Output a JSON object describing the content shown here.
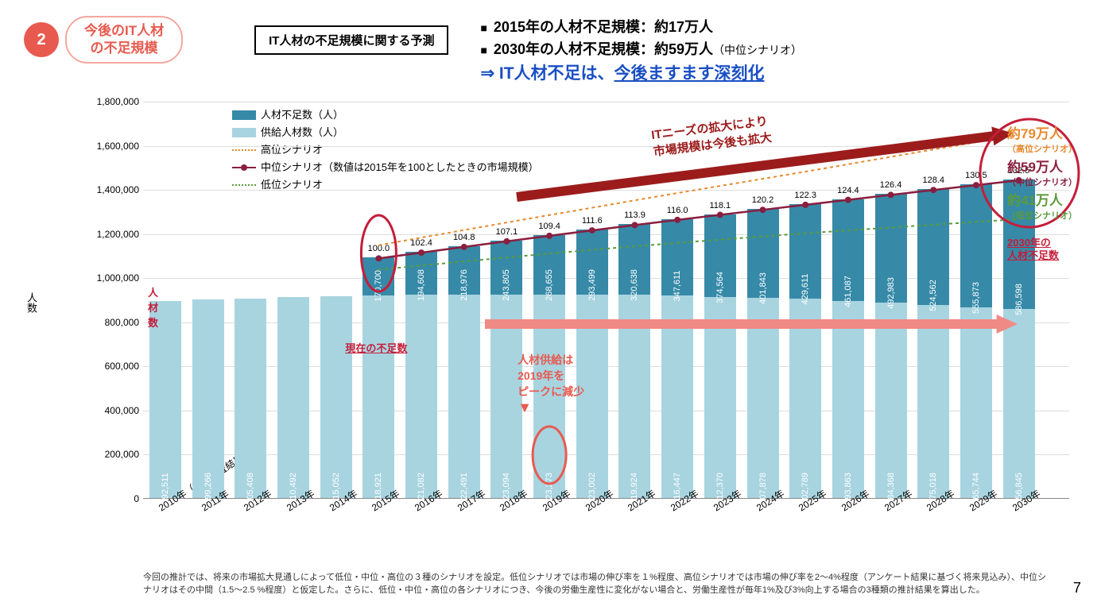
{
  "header": {
    "badge_num": "2",
    "badge_title_l1": "今後のIT人材",
    "badge_title_l2": "の不足規模",
    "forecast_box": "IT人材の不足規模に関する予測",
    "summary": {
      "r1_a": "2015年の人材不足規模：",
      "r1_b": "約17万人",
      "r2_a": "2030年の人材不足規模：",
      "r2_b": "約59万人",
      "r2_c": "（中位シナリオ）",
      "r3_a": "⇒ IT人材不足は、",
      "r3_b": "今後ますます深刻化"
    }
  },
  "chart": {
    "yaxis_label": "人数",
    "ylim": [
      0,
      1800000
    ],
    "ytick_step": 200000,
    "yticks": [
      "0",
      "200,000",
      "400,000",
      "600,000",
      "800,000",
      "1,000,000",
      "1,200,000",
      "1,400,000",
      "1,600,000",
      "1,800,000"
    ],
    "categories": [
      "2010年（国勢調査結果）",
      "2011年",
      "2012年",
      "2013年",
      "2014年",
      "2015年",
      "2016年",
      "2017年",
      "2018年",
      "2019年",
      "2020年",
      "2021年",
      "2022年",
      "2023年",
      "2024年",
      "2025年",
      "2026年",
      "2027年",
      "2028年",
      "2029年",
      "2030年"
    ],
    "supply": [
      892511,
      899266,
      905408,
      910492,
      915052,
      918921,
      921082,
      922491,
      923094,
      923273,
      923002,
      919924,
      916447,
      912370,
      907878,
      902789,
      893863,
      884368,
      875018,
      865744,
      856845
    ],
    "shortage": [
      0,
      0,
      0,
      0,
      0,
      170700,
      194608,
      218976,
      243805,
      268655,
      293499,
      320638,
      347611,
      374564,
      401843,
      429611,
      461087,
      492983,
      524562,
      555873,
      586598
    ],
    "line_vals": [
      "",
      "",
      "",
      "",
      "",
      "100.0",
      "102.4",
      "104.8",
      "107.1",
      "109.4",
      "111.6",
      "113.9",
      "116.0",
      "118.1",
      "120.2",
      "122.3",
      "124.4",
      "126.4",
      "128.4",
      "130.5",
      "132.5"
    ],
    "colors": {
      "supply": "#a8d4e0",
      "shortage": "#368aa8",
      "high": "#e8892c",
      "mid": "#8a1f3f",
      "low": "#5a9a3c",
      "arrow_dark": "#9c1c1c",
      "arrow_pink": "#f08a84",
      "circle": "#c41e3a"
    },
    "legend": {
      "shortage": "人材不足数（人）",
      "supply": "供給人材数（人）",
      "high": "高位シナリオ",
      "mid": "中位シナリオ（数値は2015年を100としたときの市場規模）",
      "low": "低位シナリオ"
    },
    "annotations": {
      "jz": "人\n材\n数",
      "current": "現在の不足数",
      "peak_l1": "人材供給は",
      "peak_l2": "2019年を",
      "peak_l3": "ピークに減少",
      "growth_l1": "ITニーズの拡大により",
      "growth_l2": "市場規模は今後も拡大",
      "sc_high": "約79万人",
      "sc_high_sub": "（高位シナリオ）",
      "sc_mid": "約59万人",
      "sc_mid_sub": "（中位シナリオ）",
      "sc_low": "約41万人",
      "sc_low_sub": "（低位シナリオ）",
      "sc_title_l1": "2030年の",
      "sc_title_l2": "人材不足数"
    }
  },
  "footnote": "今回の推計では、将来の市場拡大見通しによって低位・中位・高位の３種のシナリオを設定。低位シナリオでは市場の伸び率を１%程度、高位シナリオでは市場の伸び率を2～4%程度（アンケート結果に基づく将来見込み）、中位シナリオはその中間（1.5～2.5 %程度）と仮定した。さらに、低位・中位・高位の各シナリオにつき、今後の労働生産性に変化がない場合と、労働生産性が毎年1%及び3%向上する場合の3種類の推計結果を算出した。",
  "page_num": "7"
}
